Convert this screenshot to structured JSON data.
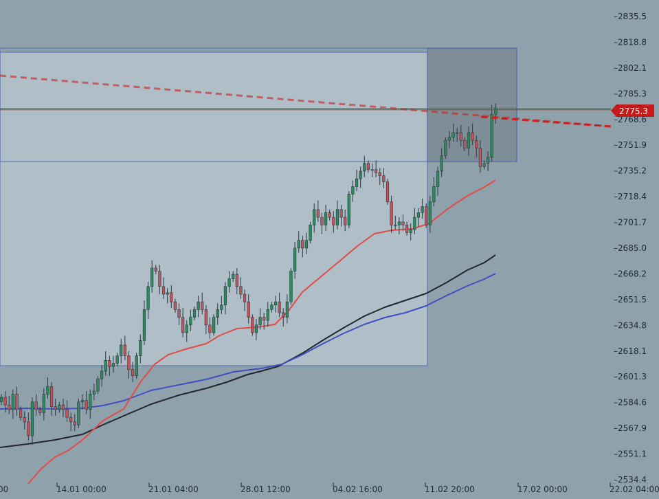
{
  "colors": {
    "background": "#8fa1ab",
    "zone_light": "#b2c1ca",
    "zone_dark": "#7d8c94",
    "zone_border": "#4f6bb0",
    "candle_up": "#2f8a5c",
    "candle_down": "#c0565c",
    "wick": "#2a3540",
    "ma_red": "#e14c48",
    "ma_blue": "#3f4fbf",
    "ma_black": "#1f262c",
    "trend_red": "#cc1f1f",
    "price_tag_bg": "#c41a1a",
    "price_line": "#3a7a3a"
  },
  "chart_data": {
    "type": "candlestick",
    "x_tick_labels": [
      "00",
      "14.01 00:00",
      "21.01 04:00",
      "28.01 12:00",
      "04.02 16:00",
      "11.02 20:00",
      "17.02 00:00",
      "22.02 04:00"
    ],
    "y_tick_labels": [
      "2835.5",
      "2818.8",
      "2802.1",
      "2785.3",
      "2768.6",
      "2751.9",
      "2735.2",
      "2718.4",
      "2701.7",
      "2685.0",
      "2668.2",
      "2651.5",
      "2634.8",
      "2618.1",
      "2601.3",
      "2584.6",
      "2567.9",
      "2551.1",
      "2534.4"
    ],
    "ylim": [
      2534.4,
      2835.5
    ],
    "current_price": "2775.3",
    "candles_close": [
      2588,
      2583,
      2580,
      2590,
      2580,
      2575,
      2572,
      2563,
      2585,
      2580,
      2578,
      2590,
      2595,
      2582,
      2580,
      2583,
      2580,
      2575,
      2572,
      2570,
      2585,
      2586,
      2580,
      2590,
      2592,
      2600,
      2605,
      2612,
      2608,
      2610,
      2615,
      2622,
      2615,
      2606,
      2602,
      2615,
      2625,
      2645,
      2660,
      2672,
      2670,
      2660,
      2655,
      2656,
      2650,
      2645,
      2640,
      2630,
      2635,
      2640,
      2645,
      2650,
      2645,
      2635,
      2630,
      2640,
      2645,
      2648,
      2660,
      2665,
      2668,
      2660,
      2655,
      2650,
      2640,
      2630,
      2635,
      2640,
      2638,
      2645,
      2648,
      2650,
      2643,
      2640,
      2650,
      2670,
      2685,
      2690,
      2685,
      2690,
      2700,
      2710,
      2705,
      2700,
      2708,
      2705,
      2700,
      2710,
      2705,
      2700,
      2720,
      2725,
      2730,
      2735,
      2740,
      2736,
      2736,
      2734,
      2732,
      2728,
      2715,
      2700,
      2700,
      2702,
      2700,
      2695,
      2697,
      2705,
      2708,
      2712,
      2700,
      2715,
      2725,
      2735,
      2745,
      2755,
      2757,
      2760,
      2760,
      2755,
      2750,
      2760,
      2755,
      2750,
      2738,
      2740,
      2744,
      2772,
      2776
    ],
    "ma_red": [
      [
        41,
        704
      ],
      [
        60,
        682
      ],
      [
        80,
        665
      ],
      [
        100,
        655
      ],
      [
        120,
        640
      ],
      [
        150,
        612
      ],
      [
        180,
        595
      ],
      [
        205,
        555
      ],
      [
        225,
        530
      ],
      [
        245,
        516
      ],
      [
        270,
        508
      ],
      [
        300,
        500
      ],
      [
        320,
        488
      ],
      [
        345,
        478
      ],
      [
        375,
        476
      ],
      [
        400,
        472
      ],
      [
        420,
        452
      ],
      [
        440,
        425
      ],
      [
        470,
        400
      ],
      [
        500,
        375
      ],
      [
        520,
        358
      ],
      [
        545,
        340
      ],
      [
        570,
        335
      ],
      [
        600,
        333
      ],
      [
        625,
        325
      ],
      [
        650,
        305
      ],
      [
        680,
        285
      ],
      [
        705,
        272
      ],
      [
        721,
        262
      ]
    ],
    "ma_blue": [
      [
        0,
        595
      ],
      [
        40,
        594
      ],
      [
        80,
        595
      ],
      [
        120,
        594
      ],
      [
        150,
        590
      ],
      [
        180,
        583
      ],
      [
        220,
        568
      ],
      [
        260,
        560
      ],
      [
        300,
        552
      ],
      [
        340,
        541
      ],
      [
        380,
        536
      ],
      [
        410,
        530
      ],
      [
        440,
        516
      ],
      [
        470,
        500
      ],
      [
        500,
        485
      ],
      [
        530,
        472
      ],
      [
        560,
        462
      ],
      [
        590,
        455
      ],
      [
        620,
        445
      ],
      [
        650,
        430
      ],
      [
        680,
        416
      ],
      [
        705,
        406
      ],
      [
        721,
        398
      ]
    ],
    "ma_black": [
      [
        0,
        651
      ],
      [
        40,
        646
      ],
      [
        80,
        640
      ],
      [
        120,
        632
      ],
      [
        150,
        618
      ],
      [
        180,
        605
      ],
      [
        220,
        588
      ],
      [
        260,
        575
      ],
      [
        300,
        565
      ],
      [
        330,
        556
      ],
      [
        360,
        545
      ],
      [
        380,
        540
      ],
      [
        405,
        533
      ],
      [
        440,
        514
      ],
      [
        470,
        495
      ],
      [
        500,
        477
      ],
      [
        530,
        460
      ],
      [
        560,
        447
      ],
      [
        590,
        437
      ],
      [
        620,
        427
      ],
      [
        650,
        411
      ],
      [
        680,
        393
      ],
      [
        705,
        382
      ],
      [
        721,
        371
      ]
    ],
    "trend_line": [
      [
        0,
        110
      ],
      [
        889,
        184
      ]
    ],
    "zones": [
      {
        "kind": "light",
        "x0": 0,
        "y0": 76,
        "x1": 622,
        "y1": 532
      },
      {
        "kind": "dark",
        "x0": 622,
        "y0": 70,
        "x1": 752,
        "y1": 235
      },
      {
        "kind": "band",
        "x0": 0,
        "y0": 70,
        "x1": 752,
        "y1": 235
      }
    ]
  }
}
